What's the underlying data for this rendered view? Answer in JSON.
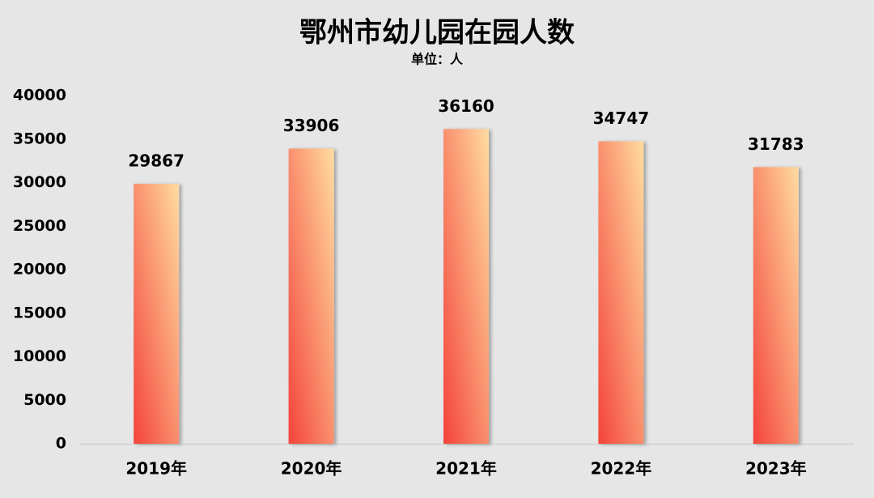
{
  "chart_data": {
    "type": "bar",
    "title": "鄂州市幼儿园在园人数",
    "subtitle": "单位：人",
    "categories": [
      "2019年",
      "2020年",
      "2021年",
      "2022年",
      "2023年"
    ],
    "values": [
      29867,
      33906,
      36160,
      34747,
      31783
    ],
    "gradient": [
      "#f4433a",
      "#ffdca2"
    ],
    "ylim": [
      0,
      40000
    ],
    "yticks": [
      0,
      5000,
      10000,
      15000,
      20000,
      25000,
      30000,
      35000,
      40000
    ],
    "grid": false
  }
}
